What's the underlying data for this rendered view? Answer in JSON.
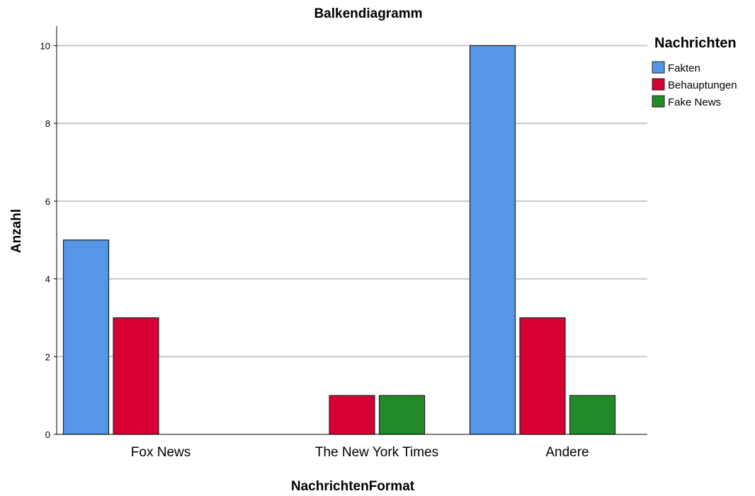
{
  "chart_data": {
    "type": "bar",
    "title": "Balkendiagramm",
    "xlabel": "NachrichtenFormat",
    "ylabel": "Anzahl",
    "categories": [
      "Fox News",
      "The New York Times",
      "Andere"
    ],
    "series": [
      {
        "name": "Fakten",
        "values": [
          5,
          0,
          10
        ],
        "color": "#5596e6"
      },
      {
        "name": "Behauptungen",
        "values": [
          3,
          1,
          3
        ],
        "color": "#d70032"
      },
      {
        "name": "Fake News",
        "values": [
          0,
          1,
          1
        ],
        "color": "#238a2a"
      }
    ],
    "ylim": [
      0,
      10.5
    ],
    "yticks": [
      0,
      2,
      4,
      6,
      8,
      10
    ],
    "grid": true,
    "legend": {
      "title": "Nachrichten",
      "position": "top-right"
    }
  }
}
